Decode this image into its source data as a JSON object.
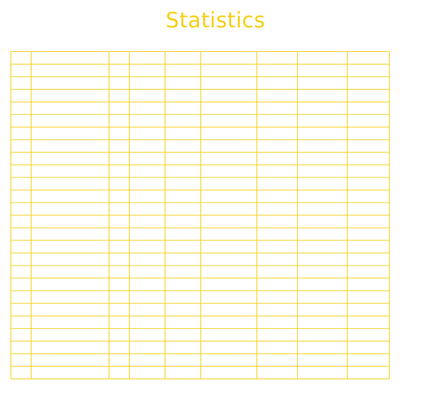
{
  "page": {
    "title": "Statistics",
    "accent_color": "#f5cf18"
  },
  "table": {
    "row_count": 26,
    "column_count": 9,
    "cells_empty": true
  }
}
